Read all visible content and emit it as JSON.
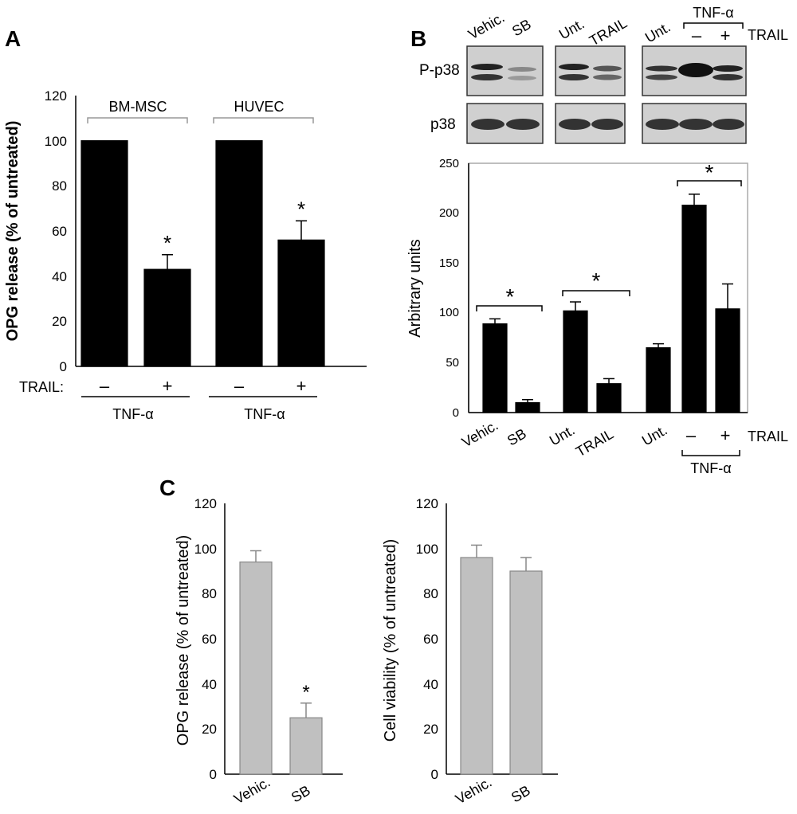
{
  "panels": {
    "A": {
      "letter": "A",
      "ylabel": "OPG release (% of untreated)",
      "yticks": [
        "0",
        "20",
        "40",
        "60",
        "80",
        "100",
        "120"
      ],
      "group_labels": [
        "BM-MSC",
        "HUVEC"
      ],
      "trail_label": "TRAIL:",
      "signs": [
        "–",
        "+",
        "–",
        "+"
      ],
      "tnf_label": "TNF-α",
      "star": "*"
    },
    "B": {
      "letter": "B",
      "blot": {
        "row_labels": [
          "P-p38",
          "p38"
        ],
        "lane_labels": [
          "Vehic.",
          "SB",
          "Unt.",
          "TRAIL",
          "Unt."
        ],
        "signs": [
          "–",
          "+"
        ],
        "tnf_label": "TNF-α",
        "trail_label": "TRAIL"
      },
      "ylabel": "Arbitrary units",
      "yticks": [
        "0",
        "50",
        "100",
        "150",
        "200",
        "250"
      ],
      "xlabels": [
        "Vehic.",
        "SB",
        "Unt.",
        "TRAIL",
        "Unt."
      ],
      "signs": [
        "–",
        "+"
      ],
      "trail_label": "TRAIL",
      "tnf_label": "TNF-α",
      "star": "*"
    },
    "C": {
      "letter": "C",
      "left": {
        "ylabel": "OPG release (% of untreated)",
        "yticks": [
          "0",
          "20",
          "40",
          "60",
          "80",
          "100",
          "120"
        ],
        "xlabels": [
          "Vehic.",
          "SB"
        ],
        "star": "*"
      },
      "right": {
        "ylabel": "Cell viability (% of untreated)",
        "yticks": [
          "0",
          "20",
          "40",
          "60",
          "80",
          "100",
          "120"
        ],
        "xlabels": [
          "Vehic.",
          "SB"
        ]
      }
    }
  },
  "chart_data": [
    {
      "panel": "A",
      "type": "bar",
      "ylabel": "OPG release (% of untreated)",
      "ylim": [
        0,
        120
      ],
      "groups": [
        "BM-MSC",
        "HUVEC"
      ],
      "categories": [
        "–",
        "+",
        "–",
        "+"
      ],
      "values": [
        100,
        43,
        100,
        56
      ],
      "errors": [
        0,
        6.5,
        0,
        8.5
      ],
      "significant": [
        false,
        true,
        false,
        true
      ],
      "bar_color": "#000000"
    },
    {
      "panel": "B",
      "type": "bar",
      "ylabel": "Arbitrary units",
      "ylim": [
        0,
        250
      ],
      "categories": [
        "Vehic.",
        "SB",
        "Unt.",
        "TRAIL",
        "Unt.",
        "–",
        "+"
      ],
      "values": [
        89,
        10,
        102,
        29,
        65,
        208,
        104
      ],
      "errors": [
        5,
        3,
        9,
        5,
        4,
        11,
        25
      ],
      "significance_brackets": [
        [
          0,
          1
        ],
        [
          2,
          3
        ],
        [
          5,
          6
        ]
      ],
      "bar_color": "#000000"
    },
    {
      "panel": "C-left",
      "type": "bar",
      "ylabel": "OPG release (% of untreated)",
      "ylim": [
        0,
        120
      ],
      "categories": [
        "Vehic.",
        "SB"
      ],
      "values": [
        94,
        25
      ],
      "errors": [
        5,
        6.5
      ],
      "significant": [
        false,
        true
      ],
      "bar_color": "#c0c0c0"
    },
    {
      "panel": "C-right",
      "type": "bar",
      "ylabel": "Cell viability (% of untreated)",
      "ylim": [
        0,
        120
      ],
      "categories": [
        "Vehic.",
        "SB"
      ],
      "values": [
        96,
        90
      ],
      "errors": [
        5.5,
        6
      ],
      "bar_color": "#c0c0c0"
    }
  ]
}
